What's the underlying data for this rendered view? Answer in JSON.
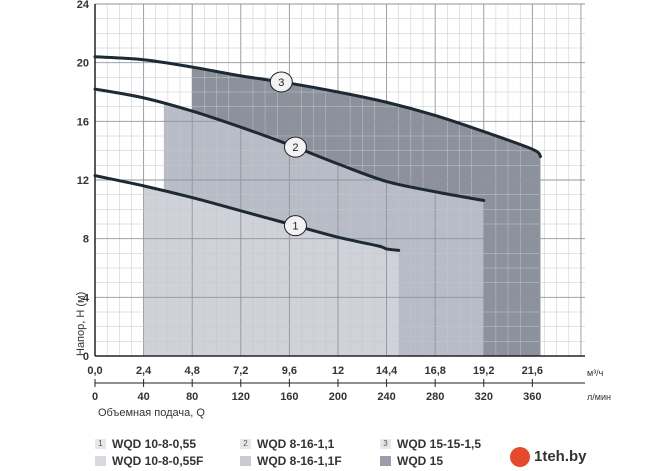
{
  "chart_data": {
    "type": "line",
    "xlabel": "Объемная подача, Q",
    "ylabel": "Напор, H (м)",
    "x_unit_top": "м³/ч",
    "x_unit_bottom": "л/мин",
    "xlim": [
      0,
      24.2
    ],
    "ylim": [
      0,
      24
    ],
    "y_ticks": [
      "0",
      "4",
      "8",
      "12",
      "16",
      "20",
      "24"
    ],
    "x_ticks_top": [
      "0,0",
      "2,4",
      "4,8",
      "7,2",
      "9,6",
      "12",
      "14,4",
      "16,8",
      "19,2",
      "21,6"
    ],
    "x_ticks_bottom": [
      "0",
      "40",
      "80",
      "120",
      "160",
      "200",
      "240",
      "280",
      "320",
      "360"
    ],
    "grid": true,
    "series": [
      {
        "name": "1",
        "x": [
          0.0,
          2.4,
          4.8,
          7.2,
          9.6,
          12.0,
          14.0,
          14.4,
          15.0
        ],
        "y": [
          12.3,
          11.6,
          10.8,
          9.9,
          9.0,
          8.1,
          7.5,
          7.3,
          7.2
        ],
        "zone": [
          2.4,
          15.0
        ],
        "marker": "1"
      },
      {
        "name": "2",
        "x": [
          0.0,
          2.4,
          4.8,
          7.2,
          9.6,
          12.0,
          14.4,
          16.8,
          19.2
        ],
        "y": [
          18.2,
          17.6,
          16.7,
          15.6,
          14.4,
          13.1,
          11.9,
          11.2,
          10.6
        ],
        "zone": [
          3.4,
          19.2
        ],
        "marker": "2"
      },
      {
        "name": "3",
        "x": [
          0.0,
          2.4,
          4.8,
          7.2,
          9.6,
          12.0,
          14.4,
          16.8,
          19.2,
          21.6,
          22.0
        ],
        "y": [
          20.4,
          20.2,
          19.7,
          19.1,
          18.6,
          18.0,
          17.3,
          16.4,
          15.3,
          14.1,
          13.6
        ],
        "zone": [
          4.8,
          22.0
        ],
        "marker": "3"
      }
    ],
    "zone_colors": [
      "#cfd2d9",
      "#b8bcc6",
      "#8d919c"
    ],
    "curve_color": "#1d2a33"
  },
  "legend": {
    "items": [
      {
        "num": "1",
        "model": "WQD 10-8-0,55"
      },
      {
        "num": "",
        "model": "WQD 10-8-0,55F"
      },
      {
        "num": "2",
        "model": "WQD 8-16-1,1"
      },
      {
        "num": "",
        "model": "WQD 8-16-1,1F"
      },
      {
        "num": "3",
        "model": "WQD 15-15-1,5"
      },
      {
        "num": "",
        "model": "WQD 15"
      }
    ]
  },
  "watermark": {
    "text": "1teh.by"
  }
}
